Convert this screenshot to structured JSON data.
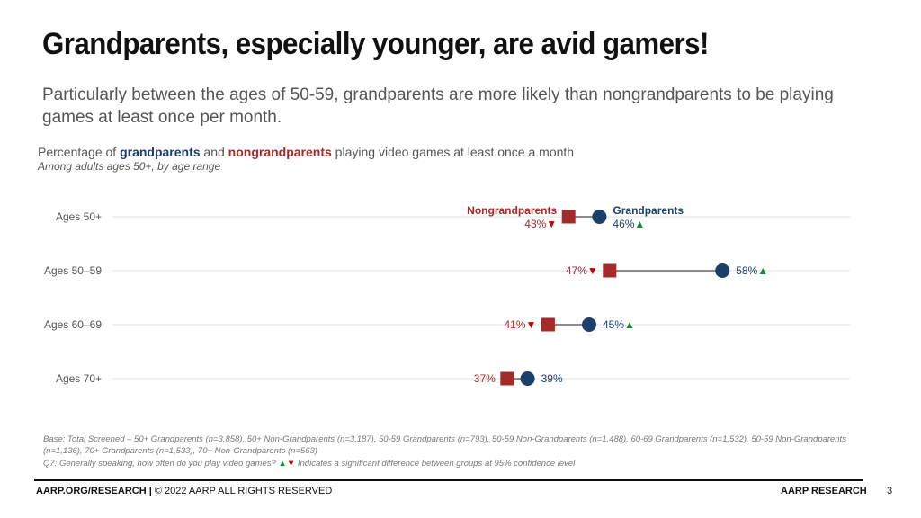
{
  "slide": {
    "title": "Grandparents, especially younger, are avid gamers!",
    "subtitle": "Particularly between the ages of 50-59, grandparents are more likely than nongrandparents to be playing games at least once per month.",
    "chart_title_pre": "Percentage of ",
    "chart_title_g": "grandparents",
    "chart_title_mid": " and ",
    "chart_title_n": "nongrandparents",
    "chart_title_post": " playing video games at least once a month",
    "chart_subtitle": "Among adults ages 50+, by age range",
    "base_note": "Base: Total Screened – 50+ Grandparents (n=3,858), 50+ Non-Grandparents (n=3,187), 50-59 Grandparents (n=793), 50-59 Non-Grandparents (n=1,488), 60-69 Grandparents (n=1,532), 50-59 Non-Grandparents (n=1,136), 70+ Grandparents (n=1,533), 70+ Non-Grandparents (n=563)",
    "q7_text": "Q7: Generally speaking, how often do you play video games?",
    "q7_up": "▲",
    "q7_down": "▼",
    "q7_suffix": " Indicates a significant difference between groups at 95% confidence level",
    "footer_left_bold": "AARP.ORG/RESEARCH |",
    "footer_left_rest": " © 2022 AARP ALL RIGHTS RESERVED",
    "footer_right": "AARP RESEARCH",
    "page_number": "3"
  },
  "colors": {
    "grandparents": "#1b3f6b",
    "nongrandparents": "#a52a2a",
    "up_arrow": "#1a8a3a",
    "down_arrow": "#c00000",
    "connector": "#666666",
    "gridline": "#e2e2e2"
  },
  "chart_data": {
    "type": "scatter",
    "subtype": "dumbbell",
    "categories": [
      "Ages 50+",
      "Ages 50–59",
      "Ages 60–69",
      "Ages 70+"
    ],
    "series": [
      {
        "name": "Nongrandparents",
        "marker": "square",
        "values": [
          43,
          47,
          41,
          37
        ],
        "labels": [
          "43%",
          "47%",
          "41%",
          "37%"
        ],
        "arrows": [
          "▼",
          "▼",
          "▼",
          ""
        ]
      },
      {
        "name": "Grandparents",
        "marker": "circle",
        "values": [
          46,
          58,
          45,
          39
        ],
        "labels": [
          "46%",
          "58%",
          "45%",
          "39%"
        ],
        "arrows": [
          "▲",
          "▲",
          "▲",
          ""
        ]
      }
    ],
    "xlim": [
      0,
      70
    ],
    "unit": "%"
  }
}
